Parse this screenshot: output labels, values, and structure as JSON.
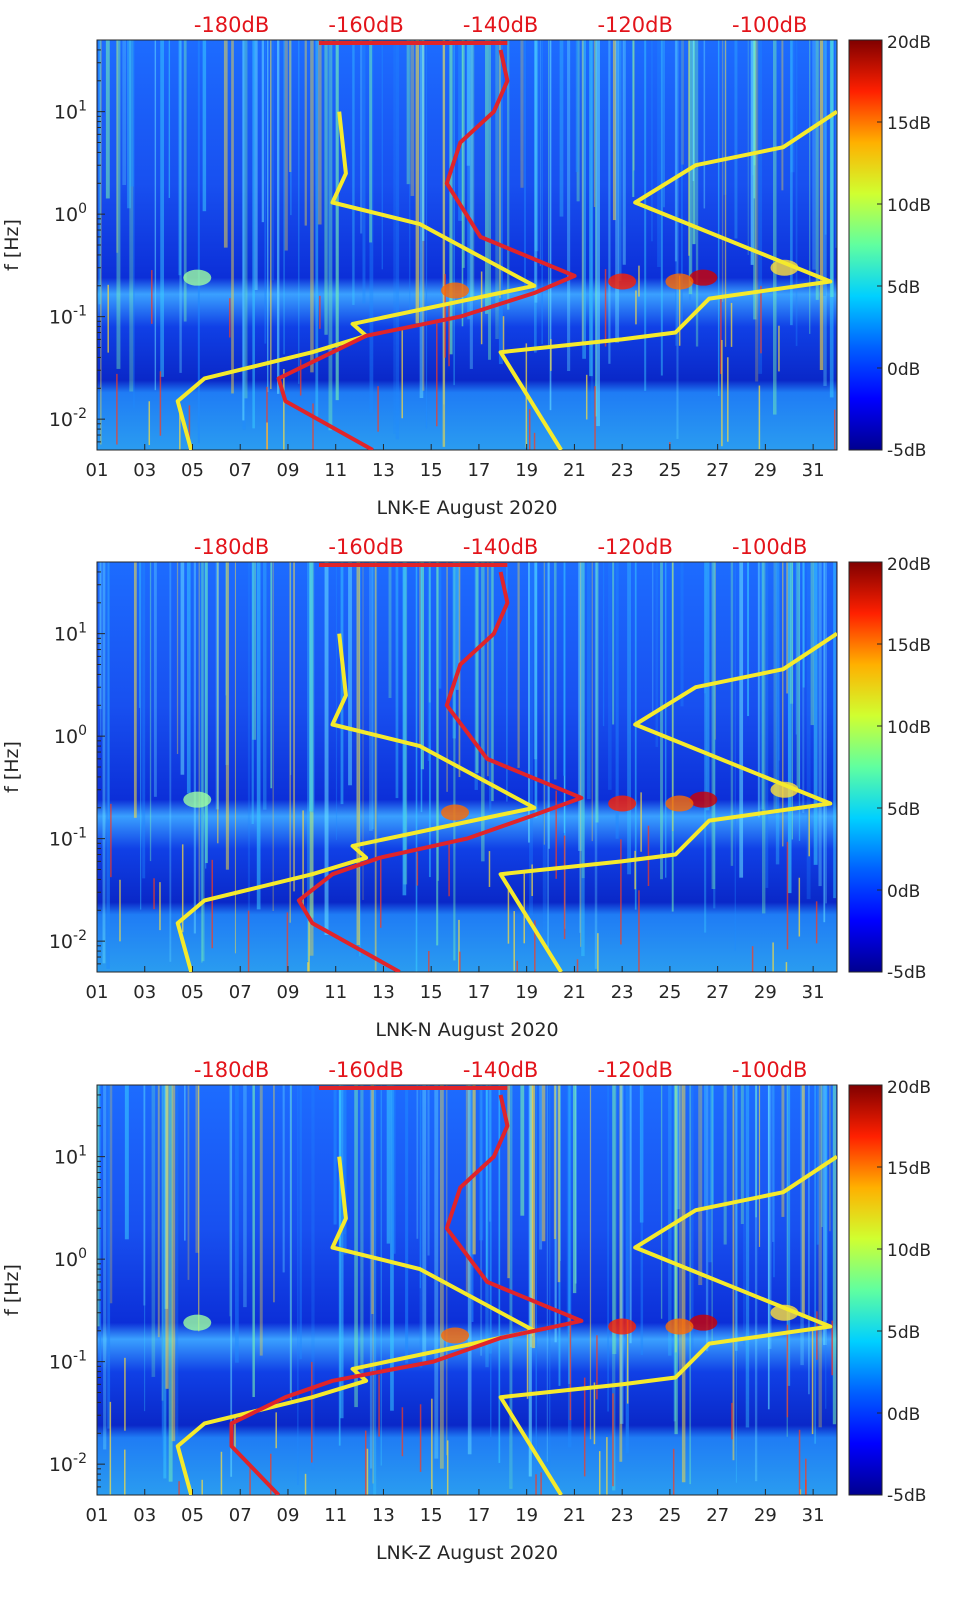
{
  "colors": {
    "noise_model_lines": "#f5ea2c",
    "psd_line": "#e0242a",
    "top_axis_labels": "#e3141b",
    "colormap": [
      "#00008f",
      "#0000ff",
      "#0080ff",
      "#00ffff",
      "#80ff80",
      "#ffff00",
      "#ff8000",
      "#ff0000",
      "#800000"
    ]
  },
  "chart_data": [
    {
      "type": "heatmap",
      "xlabel": "LNK-E August 2020",
      "ylabel": "f [Hz]",
      "x_ticks": [
        "01",
        "03",
        "05",
        "07",
        "09",
        "11",
        "13",
        "15",
        "17",
        "19",
        "21",
        "23",
        "25",
        "27",
        "29",
        "31"
      ],
      "x_range_days": [
        1,
        32
      ],
      "y_scale": "log",
      "y_ticks": [
        "10^-2",
        "10^-1",
        "10^0",
        "10^1"
      ],
      "y_range_hz": [
        0.005,
        50
      ],
      "top_ticks": [
        "-180dB",
        "-160dB",
        "-140dB",
        "-120dB",
        "-100dB"
      ],
      "top_range_db": [
        -200,
        -90
      ],
      "colorbar": {
        "ticks": [
          "20dB",
          "15dB",
          "10dB",
          "5dB",
          "0dB",
          "-5dB"
        ],
        "range_db": [
          -5,
          20
        ]
      },
      "legend": "none",
      "series": [
        {
          "kind": "noise_model_low",
          "points": [
            [
              -186,
              0.005
            ],
            [
              -188,
              0.015
            ],
            [
              -184,
              0.025
            ],
            [
              -168,
              0.045
            ],
            [
              -160,
              0.065
            ],
            [
              -162,
              0.085
            ],
            [
              -135,
              0.2
            ],
            [
              -152,
              0.8
            ],
            [
              -165,
              1.3
            ],
            [
              -163,
              2.5
            ],
            [
              -164,
              10
            ]
          ]
        },
        {
          "kind": "noise_model_high",
          "points": [
            [
              -131,
              0.005
            ],
            [
              -140,
              0.045
            ],
            [
              -122,
              0.06
            ],
            [
              -114,
              0.07
            ],
            [
              -109,
              0.15
            ],
            [
              -91,
              0.22
            ],
            [
              -120,
              1.3
            ],
            [
              -111,
              3
            ],
            [
              -98,
              4.5
            ],
            [
              -90,
              10
            ]
          ]
        },
        {
          "kind": "psd",
          "points": [
            [
              -159,
              0.005
            ],
            [
              -172,
              0.015
            ],
            [
              -173,
              0.025
            ],
            [
              -165,
              0.045
            ],
            [
              -160,
              0.065
            ],
            [
              -146,
              0.1
            ],
            [
              -135,
              0.17
            ],
            [
              -129,
              0.25
            ],
            [
              -143,
              0.6
            ],
            [
              -148,
              2
            ],
            [
              -146,
              5
            ],
            [
              -141,
              10
            ],
            [
              -139,
              20
            ],
            [
              -140,
              40
            ]
          ]
        }
      ]
    },
    {
      "type": "heatmap",
      "xlabel": "LNK-N August 2020",
      "ylabel": "f [Hz]",
      "x_ticks": [
        "01",
        "03",
        "05",
        "07",
        "09",
        "11",
        "13",
        "15",
        "17",
        "19",
        "21",
        "23",
        "25",
        "27",
        "29",
        "31"
      ],
      "x_range_days": [
        1,
        32
      ],
      "y_scale": "log",
      "y_ticks": [
        "10^-2",
        "10^-1",
        "10^0",
        "10^1"
      ],
      "y_range_hz": [
        0.005,
        50
      ],
      "top_ticks": [
        "-180dB",
        "-160dB",
        "-140dB",
        "-120dB",
        "-100dB"
      ],
      "top_range_db": [
        -200,
        -90
      ],
      "colorbar": {
        "ticks": [
          "20dB",
          "15dB",
          "10dB",
          "5dB",
          "0dB",
          "-5dB"
        ],
        "range_db": [
          -5,
          20
        ]
      },
      "legend": "none",
      "series": [
        {
          "kind": "noise_model_low",
          "points": [
            [
              -186,
              0.005
            ],
            [
              -188,
              0.015
            ],
            [
              -184,
              0.025
            ],
            [
              -168,
              0.045
            ],
            [
              -160,
              0.065
            ],
            [
              -162,
              0.085
            ],
            [
              -135,
              0.2
            ],
            [
              -152,
              0.8
            ],
            [
              -165,
              1.3
            ],
            [
              -163,
              2.5
            ],
            [
              -164,
              10
            ]
          ]
        },
        {
          "kind": "noise_model_high",
          "points": [
            [
              -131,
              0.005
            ],
            [
              -140,
              0.045
            ],
            [
              -122,
              0.06
            ],
            [
              -114,
              0.07
            ],
            [
              -109,
              0.15
            ],
            [
              -91,
              0.22
            ],
            [
              -120,
              1.3
            ],
            [
              -111,
              3
            ],
            [
              -98,
              4.5
            ],
            [
              -90,
              10
            ]
          ]
        },
        {
          "kind": "psd",
          "points": [
            [
              -155,
              0.005
            ],
            [
              -168,
              0.015
            ],
            [
              -170,
              0.025
            ],
            [
              -165,
              0.045
            ],
            [
              -158,
              0.065
            ],
            [
              -145,
              0.1
            ],
            [
              -135,
              0.17
            ],
            [
              -128,
              0.25
            ],
            [
              -142,
              0.6
            ],
            [
              -148,
              2
            ],
            [
              -146,
              5
            ],
            [
              -141,
              10
            ],
            [
              -139,
              20
            ],
            [
              -140,
              40
            ]
          ]
        }
      ]
    },
    {
      "type": "heatmap",
      "xlabel": "LNK-Z August 2020",
      "ylabel": "f [Hz]",
      "x_ticks": [
        "01",
        "03",
        "05",
        "07",
        "09",
        "11",
        "13",
        "15",
        "17",
        "19",
        "21",
        "23",
        "25",
        "27",
        "29",
        "31"
      ],
      "x_range_days": [
        1,
        32
      ],
      "y_scale": "log",
      "y_ticks": [
        "10^-2",
        "10^-1",
        "10^0",
        "10^1"
      ],
      "y_range_hz": [
        0.005,
        50
      ],
      "top_ticks": [
        "-180dB",
        "-160dB",
        "-140dB",
        "-120dB",
        "-100dB"
      ],
      "top_range_db": [
        -200,
        -90
      ],
      "colorbar": {
        "ticks": [
          "20dB",
          "15dB",
          "10dB",
          "5dB",
          "0dB",
          "-5dB"
        ],
        "range_db": [
          -5,
          20
        ]
      },
      "legend": "none",
      "series": [
        {
          "kind": "noise_model_low",
          "points": [
            [
              -186,
              0.005
            ],
            [
              -188,
              0.015
            ],
            [
              -184,
              0.025
            ],
            [
              -168,
              0.045
            ],
            [
              -160,
              0.065
            ],
            [
              -162,
              0.085
            ],
            [
              -135,
              0.2
            ],
            [
              -152,
              0.8
            ],
            [
              -165,
              1.3
            ],
            [
              -163,
              2.5
            ],
            [
              -164,
              10
            ]
          ]
        },
        {
          "kind": "noise_model_high",
          "points": [
            [
              -131,
              0.005
            ],
            [
              -140,
              0.045
            ],
            [
              -122,
              0.06
            ],
            [
              -114,
              0.07
            ],
            [
              -109,
              0.15
            ],
            [
              -91,
              0.22
            ],
            [
              -120,
              1.3
            ],
            [
              -111,
              3
            ],
            [
              -98,
              4.5
            ],
            [
              -90,
              10
            ]
          ]
        },
        {
          "kind": "psd",
          "points": [
            [
              -173,
              0.005
            ],
            [
              -180,
              0.015
            ],
            [
              -180,
              0.025
            ],
            [
              -172,
              0.045
            ],
            [
              -165,
              0.065
            ],
            [
              -150,
              0.1
            ],
            [
              -140,
              0.17
            ],
            [
              -128,
              0.25
            ],
            [
              -142,
              0.6
            ],
            [
              -148,
              2
            ],
            [
              -146,
              5
            ],
            [
              -141,
              10
            ],
            [
              -139,
              20
            ],
            [
              -140,
              40
            ]
          ]
        }
      ]
    }
  ]
}
